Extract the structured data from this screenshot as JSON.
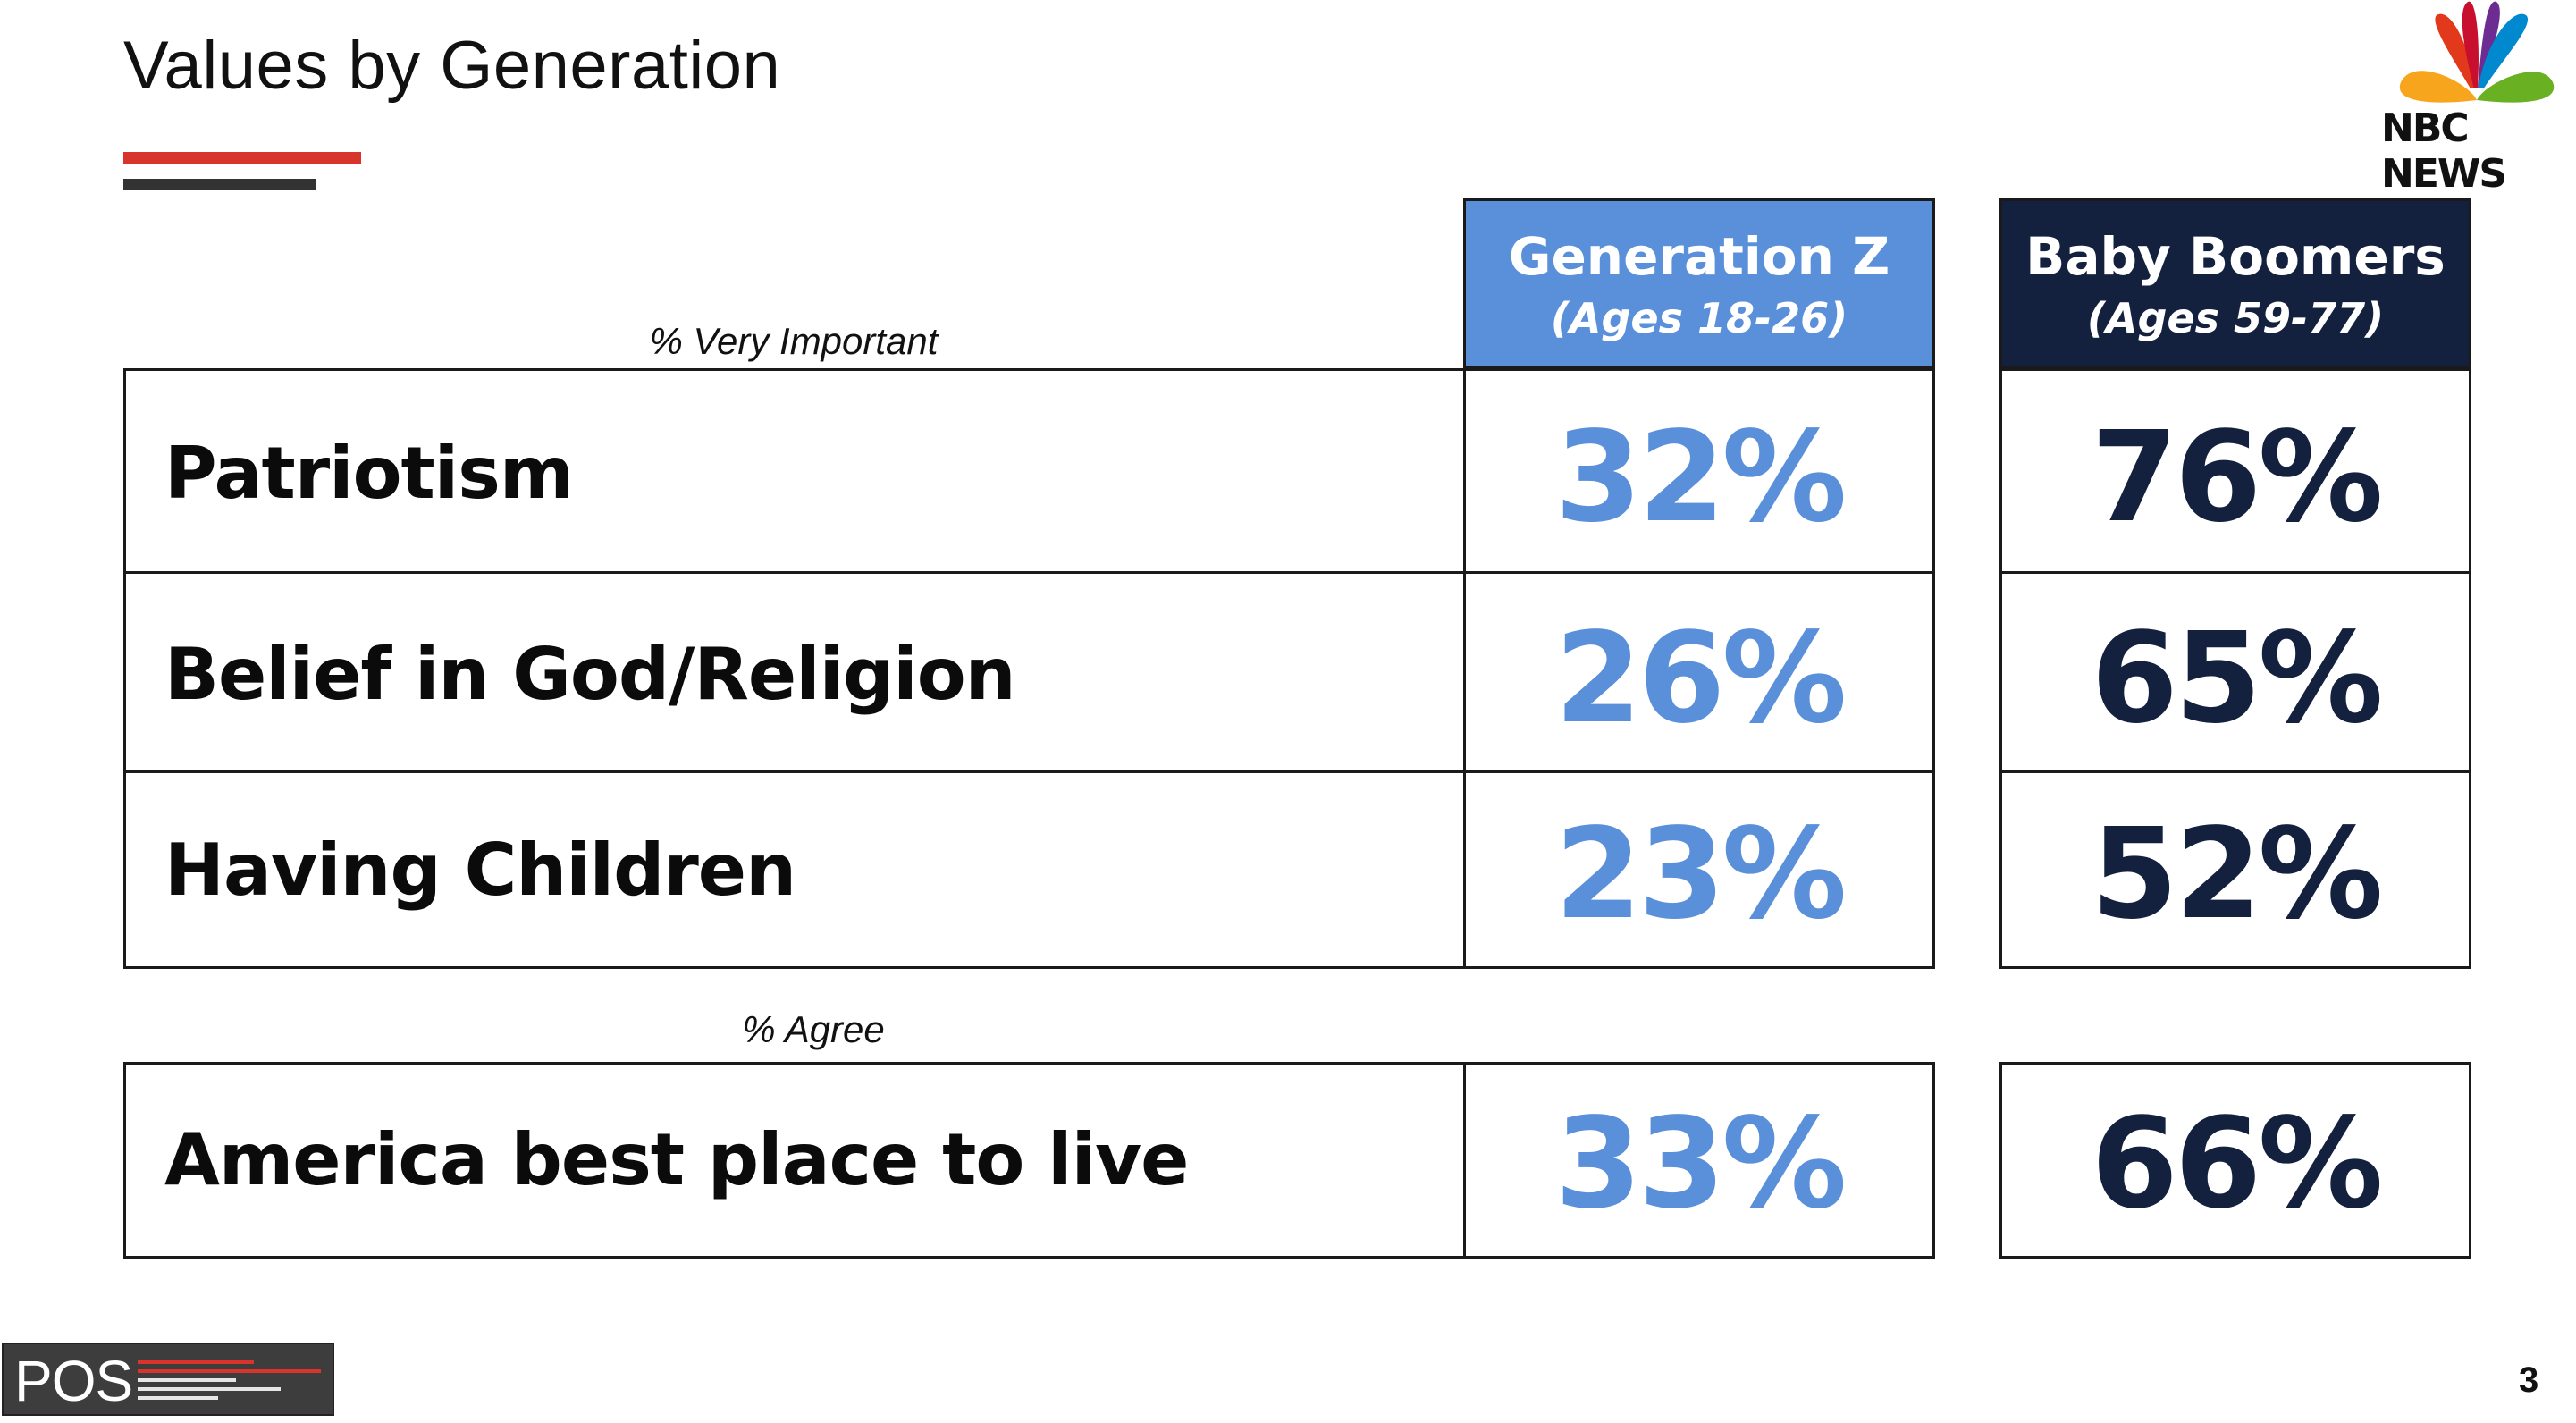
{
  "title": "Values by Generation",
  "brand": {
    "nbc": "NBC NEWS",
    "pos": "POS"
  },
  "page_number": "3",
  "columns": [
    {
      "name": "Generation Z",
      "ages": "(Ages 18-26)",
      "color": "#5a8fda"
    },
    {
      "name": "Baby Boomers",
      "ages": "(Ages 59-77)",
      "color": "#13213e"
    }
  ],
  "sections": [
    {
      "label": "% Very Important",
      "rows": [
        {
          "label": "Patriotism",
          "gen_z": "32%",
          "boomers": "76%"
        },
        {
          "label": "Belief in God/Religion",
          "gen_z": "26%",
          "boomers": "65%"
        },
        {
          "label": "Having Children",
          "gen_z": "23%",
          "boomers": "52%"
        }
      ]
    },
    {
      "label": "% Agree",
      "rows": [
        {
          "label": "America best place to live",
          "gen_z": "33%",
          "boomers": "66%"
        }
      ]
    }
  ],
  "chart_data": {
    "type": "table",
    "title": "Values by Generation",
    "columns": [
      "Generation Z (Ages 18-26)",
      "Baby Boomers (Ages 59-77)"
    ],
    "rows": [
      {
        "group": "% Very Important",
        "label": "Patriotism",
        "values": [
          32,
          76
        ]
      },
      {
        "group": "% Very Important",
        "label": "Belief in God/Religion",
        "values": [
          26,
          65
        ]
      },
      {
        "group": "% Very Important",
        "label": "Having Children",
        "values": [
          23,
          52
        ]
      },
      {
        "group": "% Agree",
        "label": "America best place to live",
        "values": [
          33,
          66
        ]
      }
    ],
    "unit": "%"
  }
}
